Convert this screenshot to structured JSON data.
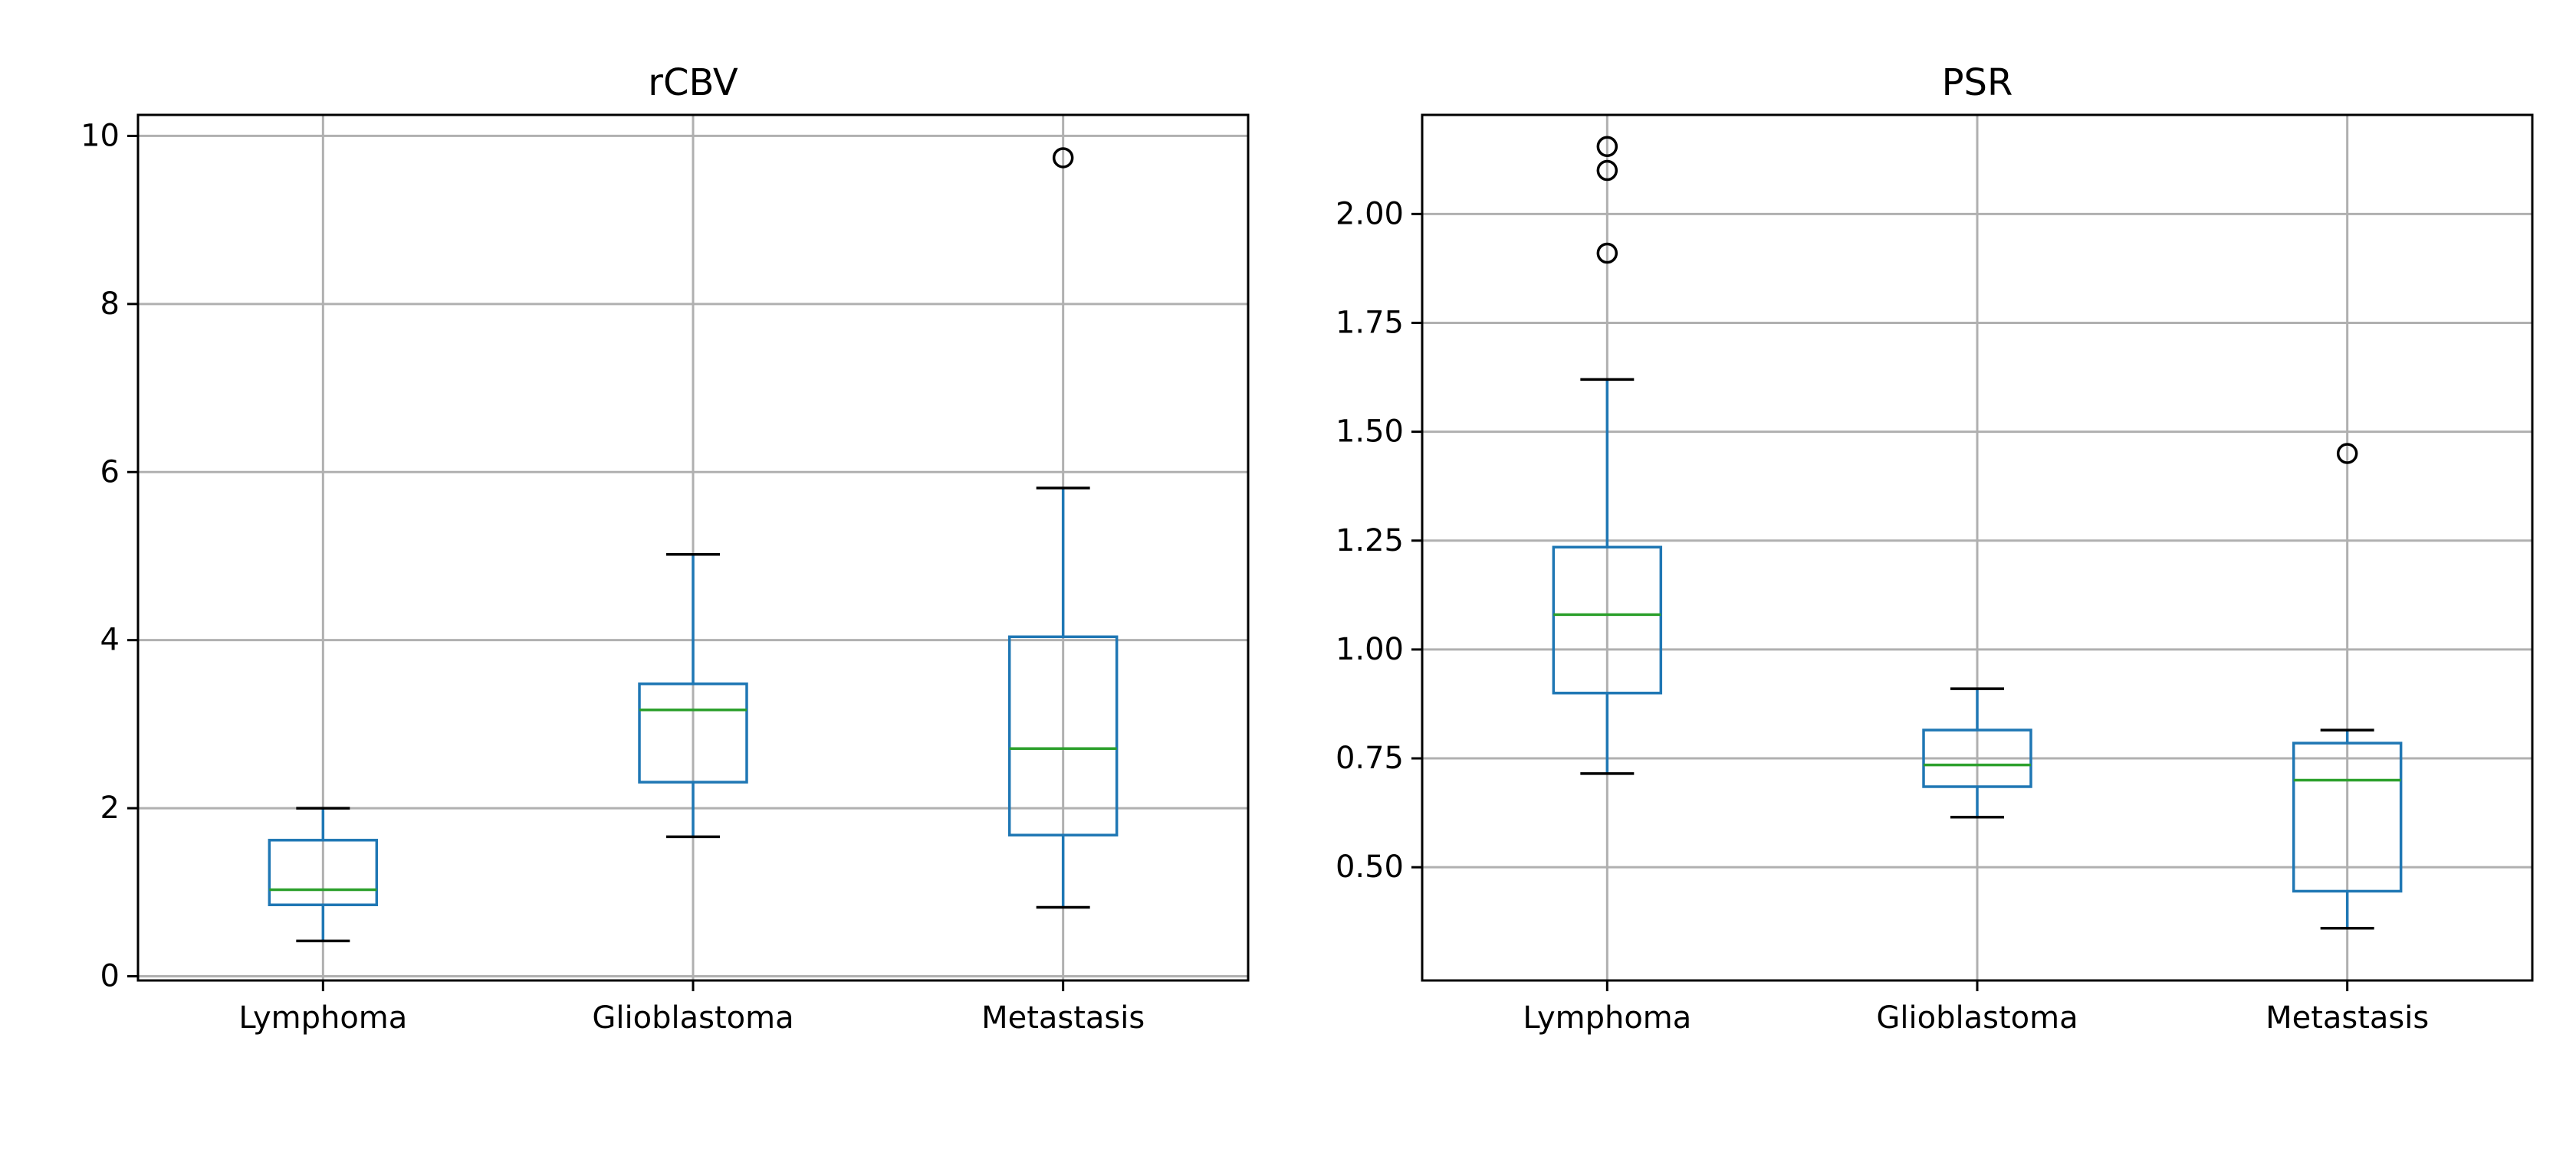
{
  "chart_data": [
    {
      "type": "box",
      "title": "rCBV",
      "categories": [
        "Lymphoma",
        "Glioblastoma",
        "Metastasis"
      ],
      "ylim": [
        -0.05,
        10.25
      ],
      "yticks": [
        0,
        2,
        4,
        6,
        8,
        10
      ],
      "ytick_labels": [
        "0",
        "2",
        "4",
        "6",
        "8",
        "10"
      ],
      "grid": true,
      "boxes": [
        {
          "category": "Lymphoma",
          "whisker_low": 0.42,
          "q1": 0.85,
          "median": 1.03,
          "q3": 1.62,
          "whisker_high": 2.0,
          "outliers": []
        },
        {
          "category": "Glioblastoma",
          "whisker_low": 1.66,
          "q1": 2.31,
          "median": 3.17,
          "q3": 3.48,
          "whisker_high": 5.02,
          "outliers": []
        },
        {
          "category": "Metastasis",
          "whisker_low": 0.82,
          "q1": 1.68,
          "median": 2.71,
          "q3": 4.04,
          "whisker_high": 5.81,
          "outliers": [
            9.74
          ]
        }
      ]
    },
    {
      "type": "box",
      "title": "PSR",
      "categories": [
        "Lymphoma",
        "Glioblastoma",
        "Metastasis"
      ],
      "ylim": [
        0.24,
        2.2275
      ],
      "yticks": [
        0.5,
        0.75,
        1.0,
        1.25,
        1.5,
        1.75,
        2.0
      ],
      "ytick_labels": [
        "0.50",
        "0.75",
        "1.00",
        "1.25",
        "1.50",
        "1.75",
        "2.00"
      ],
      "grid": true,
      "boxes": [
        {
          "category": "Lymphoma",
          "whisker_low": 0.715,
          "q1": 0.9,
          "median": 1.08,
          "q3": 1.235,
          "whisker_high": 1.62,
          "outliers": [
            1.91,
            2.1,
            2.155
          ]
        },
        {
          "category": "Glioblastoma",
          "whisker_low": 0.615,
          "q1": 0.685,
          "median": 0.735,
          "q3": 0.815,
          "whisker_high": 0.91,
          "outliers": []
        },
        {
          "category": "Metastasis",
          "whisker_low": 0.36,
          "q1": 0.445,
          "median": 0.7,
          "q3": 0.785,
          "whisker_high": 0.815,
          "outliers": [
            1.45
          ]
        }
      ]
    }
  ],
  "colors": {
    "box": "#1f77b4",
    "median": "#2ca02c",
    "cap": "#000000",
    "grid": "#b0b0b0",
    "outlier": "#000000"
  }
}
